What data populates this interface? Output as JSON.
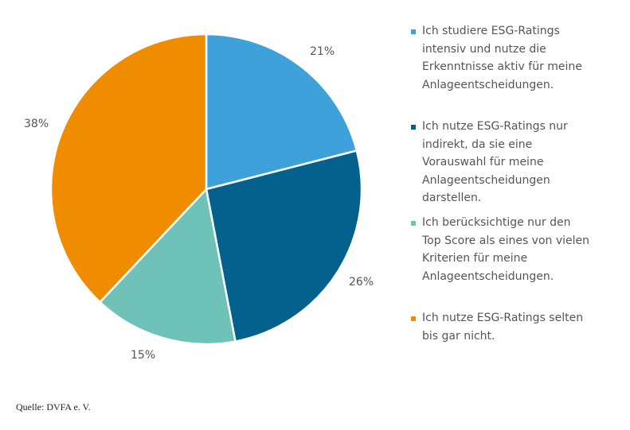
{
  "chart_data": {
    "type": "pie",
    "slices": [
      {
        "label": "Ich studiere ESG-Ratings intensiv und nutze die Erkenntnisse aktiv für meine Anlageentscheidungen.",
        "value": 21,
        "display": "21%",
        "color": "#3fa1da"
      },
      {
        "label": "Ich nutze ESG-Ratings nur indirekt, da sie eine Vorauswahl für meine Anlageentscheidungen darstellen.",
        "value": 26,
        "display": "26%",
        "color": "#04608c"
      },
      {
        "label": "Ich berücksichtige nur den Top Score als eines von vielen Kriterien für meine Anlageentscheidungen.",
        "value": 15,
        "display": "15%",
        "color": "#6fc2b8"
      },
      {
        "label": "Ich nutze ESG-Ratings selten bis gar nicht.",
        "value": 38,
        "display": "38%",
        "color": "#f08c00"
      }
    ]
  },
  "legend": {
    "items": [
      {
        "lines": [
          "Ich studiere ESG-Ratings",
          "intensiv und nutze die",
          "Erkenntnisse aktiv für meine",
          "Anlageentscheidungen."
        ],
        "color": "#3fa1da"
      },
      {
        "lines": [
          "Ich nutze ESG-Ratings nur",
          "indirekt, da sie eine",
          "Vorauswahl für meine",
          "Anlageentscheidungen",
          "darstellen."
        ],
        "color": "#04608c"
      },
      {
        "lines": [
          "Ich berücksichtige nur den",
          "Top Score als eines von vielen",
          "Kriterien für meine",
          "Anlageentscheidungen."
        ],
        "color": "#6fc2b8"
      },
      {
        "lines": [
          "Ich nutze ESG-Ratings selten",
          "bis gar nicht."
        ],
        "color": "#f08c00"
      }
    ]
  },
  "source": {
    "text": "Quelle: DVFA e. V."
  }
}
